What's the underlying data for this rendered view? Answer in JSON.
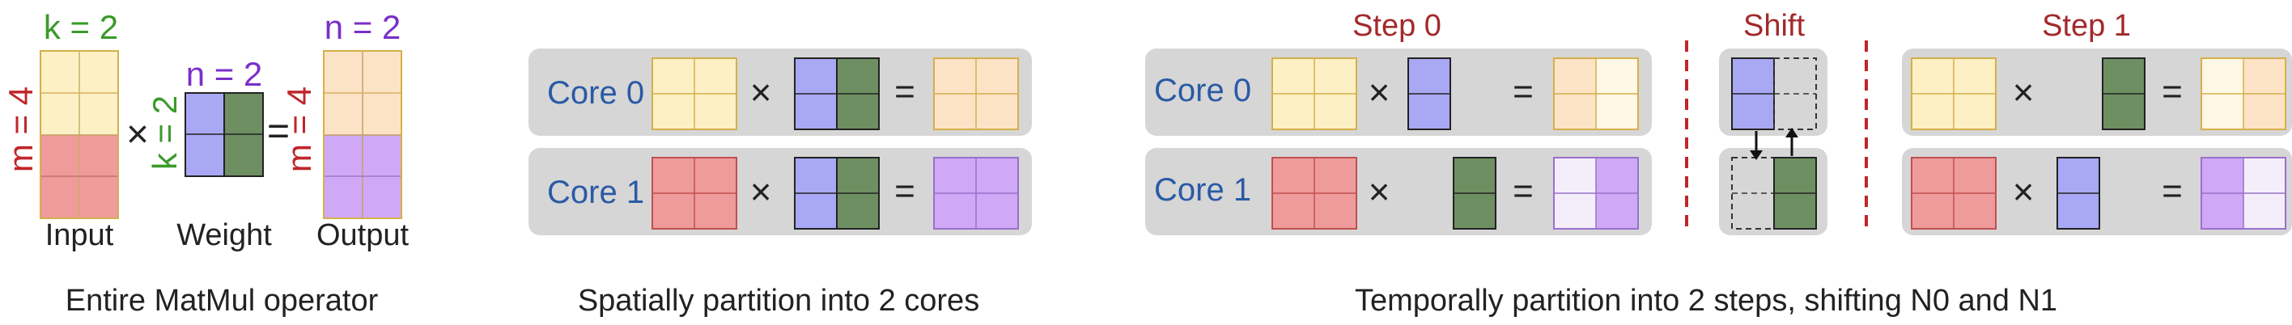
{
  "panel1": {
    "k_label": "k = 2",
    "m_label": "m = 4",
    "n_label_weight": "n = 2",
    "k_label_weight": "k = 2",
    "n_label_output": "n = 2",
    "m_label_output": "m = 4",
    "times_symbol": "×",
    "equals_symbol": "=",
    "input_label": "Input",
    "weight_label": "Weight",
    "output_label": "Output",
    "caption": "Entire MatMul operator"
  },
  "panel2": {
    "core0_label": "Core 0",
    "core1_label": "Core 1",
    "times_symbol": "×",
    "equals_symbol": "=",
    "caption": "Spatially partition into 2 cores"
  },
  "panel3": {
    "step0_title": "Step 0",
    "shift_title": "Shift",
    "step1_title": "Step 1",
    "core0_label": "Core 0",
    "core1_label": "Core 1",
    "times_symbol": "×",
    "equals_symbol": "=",
    "caption": "Temporally partition into 2 steps, shifting N0 and N1"
  },
  "colors": {
    "green_label": "#3a9a2a",
    "purple_label": "#7a2fc9",
    "red_label": "#c0262a",
    "blue_label": "#2a5aa6",
    "dark_red_title": "#a3292b",
    "input_yellow": "#fdf0c4",
    "input_red": "#ef9b9b",
    "weight_blue": "#a8a8f4",
    "weight_green": "#6e8f62",
    "output_peach": "#fde3c6",
    "output_purple": "#cfa9f5",
    "panel_gray": "#d6d6d6"
  }
}
